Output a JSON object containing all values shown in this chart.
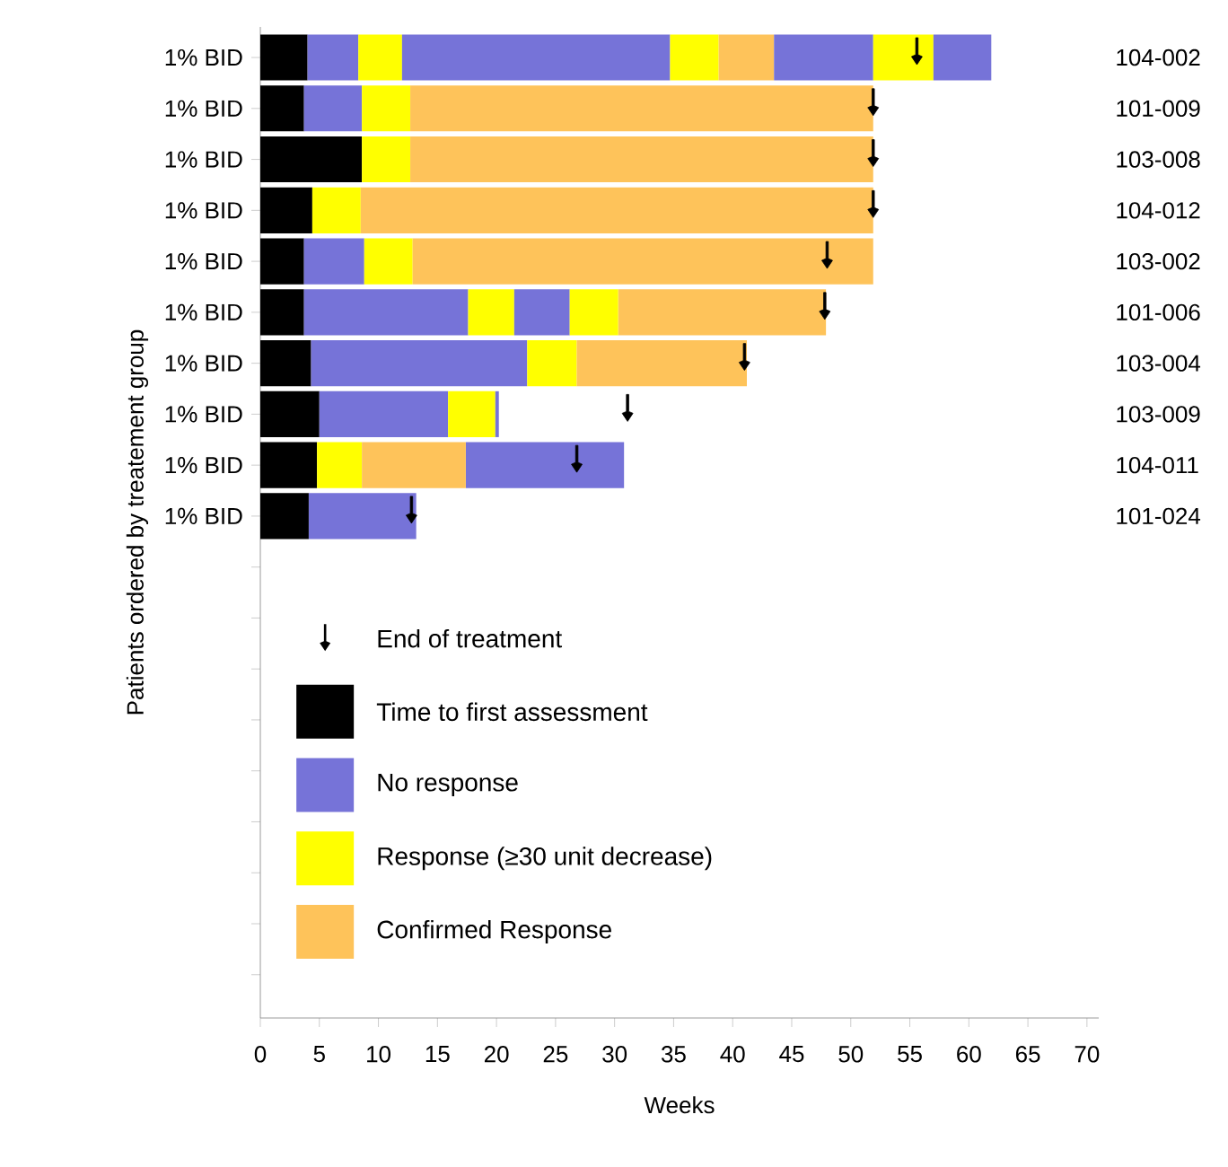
{
  "chart_data": {
    "type": "bar",
    "orientation": "horizontal",
    "xlabel": "Weeks",
    "ylabel": "Patients ordered by treatement group",
    "categories": [
      "1% BID",
      "1% BID",
      "1% BID",
      "1% BID",
      "1% BID",
      "1% BID",
      "1% BID",
      "1% BID",
      "1% BID",
      "1% BID",
      null,
      null,
      null,
      null,
      null,
      null,
      null,
      null,
      null
    ],
    "annotations": [
      "104-002",
      "101-009",
      "103-008",
      "104-012",
      "103-002",
      "101-006",
      "103-004",
      "103-009",
      "104-011",
      "101-024"
    ],
    "xlim": [
      0,
      71
    ],
    "xticks": [
      0,
      5,
      10,
      15,
      20,
      25,
      30,
      35,
      40,
      45,
      50,
      55,
      60,
      65,
      70
    ],
    "legend": "bottom left",
    "series": [
      {
        "name": "End of treatment",
        "type": "scatter",
        "color": "#000000",
        "values": [
          55.6,
          51.9,
          51.9,
          51.9,
          48.0,
          47.8,
          41.0,
          31.1,
          26.8,
          12.8,
          null,
          null,
          null,
          null,
          null,
          null,
          null,
          null,
          null
        ]
      },
      {
        "name": "Time to first assessment",
        "color": "#000000",
        "base": [
          0,
          0,
          0,
          0,
          0,
          0,
          0,
          0,
          0,
          0,
          null,
          null,
          null,
          null,
          null,
          null,
          null,
          null,
          null
        ],
        "values": [
          4.0,
          3.7,
          8.6,
          4.4,
          3.7,
          3.7,
          4.3,
          5.0,
          4.8,
          4.1,
          null,
          null,
          null,
          null,
          null,
          null,
          null,
          null,
          null
        ]
      },
      {
        "name": "No response",
        "color": "#7673d8",
        "base": [
          4.0,
          3.7,
          null,
          null,
          3.7,
          3.7,
          4.3,
          5.0,
          17.4,
          4.1,
          null,
          null,
          null,
          null,
          null,
          null,
          null,
          null,
          null
        ],
        "values": [
          4.3,
          4.9,
          null,
          null,
          5.1,
          13.9,
          18.3,
          10.9,
          13.4,
          9.1,
          null,
          null,
          null,
          null,
          null,
          null,
          null,
          null,
          null
        ]
      },
      {
        "name": "Response (≥30 unit decrease)",
        "color": "#ffff00",
        "base": [
          8.3,
          8.6,
          8.6,
          4.4,
          8.8,
          17.6,
          22.6,
          15.9,
          4.8,
          null,
          null,
          null,
          null,
          null,
          null,
          null,
          null,
          null,
          null
        ],
        "values": [
          3.7,
          4.1,
          4.1,
          4.1,
          4.1,
          3.9,
          4.2,
          4.0,
          3.8,
          null,
          null,
          null,
          null,
          null,
          null,
          null,
          null,
          null,
          null
        ]
      },
      {
        "name": "Confirmed Response",
        "color": "#fec35a",
        "base": [
          38.8,
          12.7,
          12.7,
          8.5,
          12.9,
          30.3,
          26.8,
          null,
          8.6,
          null,
          null,
          null,
          null,
          null,
          null,
          null,
          null,
          null,
          null
        ],
        "values": [
          4.7,
          39.2,
          39.2,
          43.4,
          39.0,
          17.6,
          14.4,
          null,
          8.8,
          null,
          null,
          null,
          null,
          null,
          null,
          null,
          null,
          null,
          null
        ]
      },
      {
        "color": "#7673d8",
        "base": [
          12.0,
          null,
          null,
          null,
          null,
          21.5,
          null,
          19.9,
          null,
          null,
          null,
          null,
          null,
          null,
          null,
          null,
          null,
          null,
          null
        ],
        "values": [
          22.7,
          null,
          null,
          null,
          null,
          4.7,
          null,
          0.3,
          null,
          null,
          null,
          null,
          null,
          null,
          null,
          null,
          null,
          null,
          null
        ]
      },
      {
        "color": "#ffff00",
        "base": [
          34.7,
          null,
          null,
          null,
          null,
          26.2,
          null,
          null,
          null,
          null,
          null,
          null,
          null,
          null,
          null,
          null,
          null,
          null,
          null
        ],
        "values": [
          4.1,
          null,
          null,
          null,
          null,
          4.1,
          null,
          null,
          null,
          null,
          null,
          null,
          null,
          null,
          null,
          null,
          null,
          null,
          null
        ]
      },
      {
        "color": "#7673d8",
        "base": [
          43.5,
          null,
          null,
          null,
          null,
          null,
          null,
          null,
          null,
          null,
          null,
          null,
          null,
          null,
          null,
          null,
          null,
          null,
          null
        ],
        "values": [
          8.4,
          null,
          null,
          null,
          null,
          null,
          null,
          null,
          null,
          null,
          null,
          null,
          null,
          null,
          null,
          null,
          null,
          null,
          null
        ]
      },
      {
        "color": "#ffff00",
        "base": [
          51.9,
          null,
          null,
          null,
          null,
          null,
          null,
          null,
          null,
          null,
          null,
          null,
          null,
          null,
          null,
          null,
          null,
          null,
          null
        ],
        "values": [
          5.1,
          null,
          null,
          null,
          null,
          null,
          null,
          null,
          null,
          null,
          null,
          null,
          null,
          null,
          null,
          null,
          null,
          null,
          null
        ]
      },
      {
        "color": "#7673d8",
        "base": [
          57.0,
          null,
          null,
          null,
          null,
          null,
          null,
          null,
          null,
          null,
          null,
          null,
          null,
          null,
          null,
          null,
          null,
          null,
          null
        ],
        "values": [
          4.9,
          null,
          null,
          null,
          null,
          null,
          null,
          null,
          null,
          null,
          null,
          null,
          null,
          null,
          null,
          null,
          null,
          null,
          null
        ]
      }
    ]
  }
}
